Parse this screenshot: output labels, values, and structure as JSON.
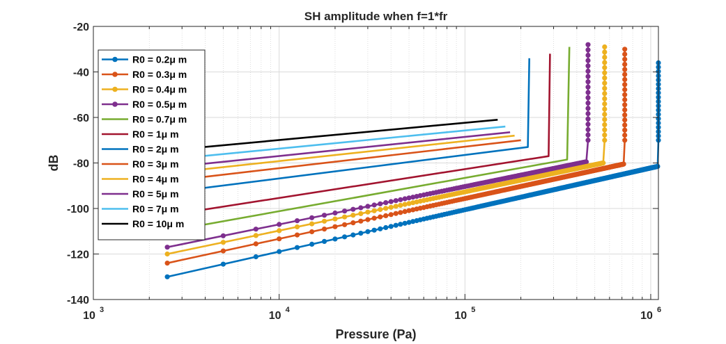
{
  "chart_data": {
    "type": "line",
    "title": "SH amplitude when f=1*fr",
    "xlabel": "Pressure (Pa)",
    "ylabel": "dB",
    "xscale": "log",
    "xlim": [
      1000,
      1100000
    ],
    "ylim": [
      -140,
      -20
    ],
    "x_ticks": [
      {
        "base": "10",
        "exp": "3",
        "value": 1000
      },
      {
        "base": "10",
        "exp": "4",
        "value": 10000
      },
      {
        "base": "10",
        "exp": "5",
        "value": 100000
      },
      {
        "base": "10",
        "exp": "6",
        "value": 1000000
      }
    ],
    "y_ticks": [
      "-20",
      "-40",
      "-60",
      "-80",
      "-100",
      "-120",
      "-140"
    ],
    "grid": true,
    "legend_position": "top-left",
    "series": [
      {
        "name": "R0 = 0.2μ m",
        "color": "#0072BD",
        "markers": true,
        "x": [
          2500,
          1090000,
          1100000,
          1100000
        ],
        "y": [
          -130,
          -81.5,
          -70,
          -36
        ]
      },
      {
        "name": "R0 = 0.3μ m",
        "color": "#D95319",
        "markers": true,
        "x": [
          2500,
          715000,
          725000,
          725000
        ],
        "y": [
          -124,
          -80.5,
          -70,
          -30
        ]
      },
      {
        "name": "R0 = 0.4μ m",
        "color": "#EDB120",
        "markers": true,
        "x": [
          2500,
          555000,
          565000,
          565000
        ],
        "y": [
          -120,
          -80,
          -70,
          -29
        ]
      },
      {
        "name": "R0 = 0.5μ m",
        "color": "#7E2F8E",
        "markers": true,
        "x": [
          2500,
          450000,
          460000,
          460000
        ],
        "y": [
          -117,
          -79.5,
          -70,
          -28
        ]
      },
      {
        "name": "R0 = 0.7μ m",
        "color": "#77AC30",
        "markers": false,
        "x": [
          2500,
          355000,
          365000
        ],
        "y": [
          -110,
          -78.5,
          -29
        ]
      },
      {
        "name": "R0 = 1μ m",
        "color": "#A2142F",
        "markers": false,
        "x": [
          2500,
          282000,
          287000
        ],
        "y": [
          -103,
          -77,
          -32
        ]
      },
      {
        "name": "R0 = 2μ m",
        "color": "#0072BD",
        "markers": false,
        "x": [
          2500,
          218000,
          222000
        ],
        "y": [
          -93,
          -73,
          -34
        ]
      },
      {
        "name": "R0 = 3μ m",
        "color": "#D95319",
        "markers": false,
        "x": [
          2500,
          200000
        ],
        "y": [
          -88,
          -70
        ]
      },
      {
        "name": "R0 = 4μ m",
        "color": "#EDB120",
        "markers": false,
        "x": [
          2500,
          185000
        ],
        "y": [
          -84.5,
          -68
        ]
      },
      {
        "name": "R0 = 5μ m",
        "color": "#7E2F8E",
        "markers": false,
        "x": [
          2500,
          175000
        ],
        "y": [
          -82,
          -66.5
        ]
      },
      {
        "name": "R0 = 7μ m",
        "color": "#4DBEEE",
        "markers": false,
        "x": [
          2500,
          165000
        ],
        "y": [
          -78.5,
          -64
        ]
      },
      {
        "name": "R0 = 10μ m",
        "color": "#000000",
        "markers": false,
        "x": [
          2500,
          150000
        ],
        "y": [
          -74.5,
          -61
        ]
      }
    ]
  }
}
